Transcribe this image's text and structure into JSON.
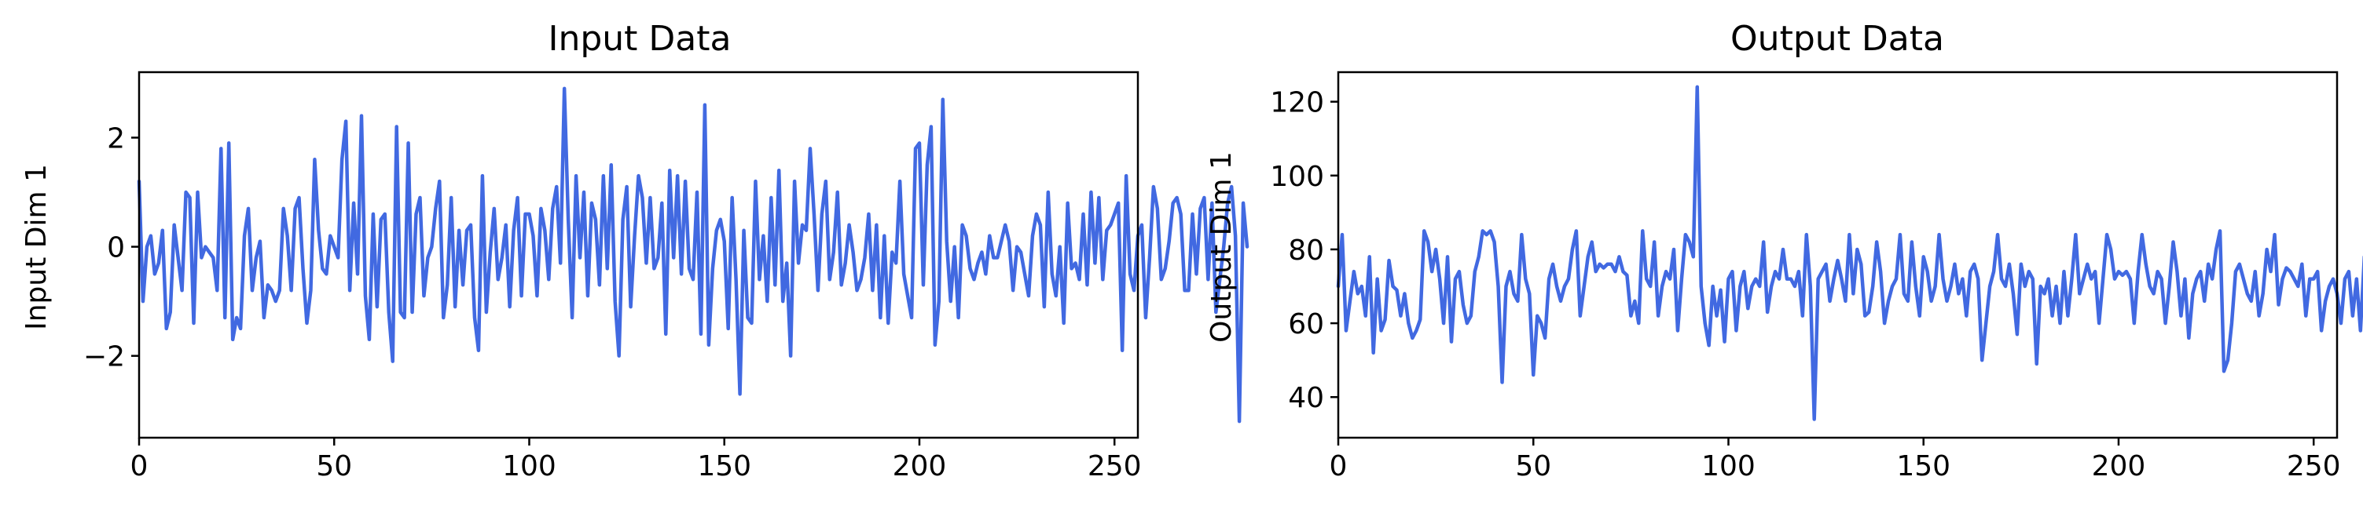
{
  "chart_data": [
    {
      "type": "line",
      "title": "Input Data",
      "xlabel": "",
      "ylabel": "Input Dim 1",
      "xlim": [
        0,
        256
      ],
      "ylim": [
        -3.5,
        3.2
      ],
      "xticks": [
        0,
        50,
        100,
        150,
        200,
        250
      ],
      "xtick_labels": [
        "0",
        "50",
        "100",
        "150",
        "200",
        "250"
      ],
      "yticks": [
        -2,
        0,
        2
      ],
      "ytick_labels": [
        "−2",
        "0",
        "2"
      ],
      "grid": false,
      "color": "#4169e1",
      "series": [
        {
          "values": [
            1.2,
            -1.0,
            0.0,
            0.2,
            -0.5,
            -0.3,
            0.3,
            -1.5,
            -1.2,
            0.4,
            -0.2,
            -0.8,
            1.0,
            0.9,
            -1.4,
            1.0,
            -0.2,
            0.0,
            -0.1,
            -0.2,
            -0.8,
            1.8,
            -1.3,
            1.9,
            -1.7,
            -1.3,
            -1.5,
            0.2,
            0.7,
            -0.8,
            -0.2,
            0.1,
            -1.3,
            -0.7,
            -0.8,
            -1.0,
            -0.8,
            0.7,
            0.2,
            -0.8,
            0.7,
            0.9,
            -0.4,
            -1.4,
            -0.8,
            1.6,
            0.3,
            -0.4,
            -0.5,
            0.2,
            0.0,
            -0.2,
            1.6,
            2.3,
            -0.8,
            0.8,
            -0.5,
            2.4,
            -0.9,
            -1.7,
            0.6,
            -1.1,
            0.5,
            0.6,
            -1.2,
            -2.1,
            2.2,
            -1.2,
            -1.3,
            1.9,
            -1.2,
            0.6,
            0.9,
            -0.9,
            -0.2,
            0.0,
            0.7,
            1.2,
            -1.3,
            -0.7,
            0.9,
            -1.1,
            0.3,
            -0.7,
            0.3,
            0.4,
            -1.3,
            -1.9,
            1.3,
            -1.2,
            -0.1,
            0.7,
            -0.6,
            -0.2,
            0.4,
            -1.1,
            0.3,
            0.9,
            -0.9,
            0.6,
            0.6,
            0.2,
            -0.9,
            0.7,
            0.3,
            -0.6,
            0.7,
            1.1,
            -0.3,
            2.9,
            0.5,
            -1.3,
            1.3,
            -0.2,
            1.0,
            -0.9,
            0.8,
            0.5,
            -0.7,
            1.3,
            -0.4,
            1.5,
            -1.0,
            -2.0,
            0.5,
            1.1,
            -1.1,
            0.2,
            1.3,
            0.9,
            -0.3,
            0.9,
            -0.4,
            -0.2,
            0.8,
            -1.6,
            1.4,
            -0.2,
            1.3,
            -0.5,
            1.2,
            -0.4,
            -0.6,
            1.0,
            -1.6,
            2.6,
            -1.8,
            -0.4,
            0.3,
            0.5,
            0.1,
            -1.5,
            0.9,
            -0.6,
            -2.7,
            0.3,
            -1.3,
            -1.4,
            1.2,
            -0.6,
            0.2,
            -1.0,
            0.9,
            -0.7,
            1.4,
            -1.0,
            -0.3,
            -2.0,
            1.2,
            -0.3,
            0.4,
            0.3,
            1.8,
            0.6,
            -0.8,
            0.6,
            1.2,
            -0.6,
            -0.1,
            1.0,
            -0.7,
            -0.3,
            0.4,
            -0.1,
            -0.8,
            -0.6,
            -0.2,
            0.6,
            -0.8,
            0.4,
            -1.3,
            0.2,
            -1.4,
            -0.1,
            -0.3,
            1.2,
            -0.5,
            -0.9,
            -1.3,
            1.8,
            1.9,
            -0.7,
            1.5,
            2.2,
            -1.8,
            -1.0,
            2.7,
            0.1,
            -1.0,
            0.0,
            -1.3,
            0.4,
            0.2,
            -0.4,
            -0.6,
            -0.3,
            -0.1,
            -0.5,
            0.2,
            -0.2,
            -0.2,
            0.1,
            0.4,
            0.1,
            -0.8,
            0.0,
            -0.1,
            -0.5,
            -0.9,
            0.2,
            0.6,
            0.4,
            -1.1,
            1.0,
            -0.5,
            -0.9,
            0.0,
            -1.4,
            0.8,
            -0.4,
            -0.3,
            -0.6,
            0.6,
            -0.7,
            1.0,
            -0.3,
            0.9,
            -0.6,
            0.3,
            0.4,
            0.6,
            0.8,
            -1.9,
            1.3,
            -0.5,
            -0.8,
            0.2,
            0.4,
            -1.3,
            -0.2,
            1.1,
            0.7,
            -0.6,
            -0.4,
            0.1,
            0.8,
            0.9,
            0.6,
            -0.8,
            -0.8,
            0.6,
            -0.5,
            0.7,
            0.9,
            -0.6,
            0.8,
            -1.2,
            -0.6,
            0.0,
            0.8,
            1.1,
            0.2,
            -3.2,
            0.8,
            0.0
          ]
        }
      ]
    },
    {
      "type": "line",
      "title": "Output Data",
      "xlabel": "",
      "ylabel": "Output Dim 1",
      "xlim": [
        0,
        256
      ],
      "ylim": [
        29,
        128
      ],
      "xticks": [
        0,
        50,
        100,
        150,
        200,
        250
      ],
      "xtick_labels": [
        "0",
        "50",
        "100",
        "150",
        "200",
        "250"
      ],
      "yticks": [
        40,
        60,
        80,
        100,
        120
      ],
      "ytick_labels": [
        "40",
        "60",
        "80",
        "100",
        "120"
      ],
      "grid": false,
      "color": "#4169e1",
      "series": [
        {
          "values": [
            70,
            84,
            58,
            66,
            74,
            68,
            70,
            62,
            78,
            52,
            72,
            58,
            61,
            77,
            70,
            69,
            62,
            68,
            60,
            56,
            58,
            61,
            85,
            82,
            74,
            80,
            72,
            60,
            78,
            55,
            72,
            74,
            65,
            60,
            62,
            74,
            78,
            85,
            84,
            85,
            82,
            70,
            44,
            70,
            74,
            68,
            66,
            84,
            72,
            68,
            46,
            62,
            60,
            56,
            72,
            76,
            70,
            66,
            70,
            72,
            80,
            85,
            62,
            70,
            78,
            82,
            74,
            76,
            75,
            76,
            76,
            74,
            78,
            74,
            73,
            62,
            66,
            60,
            85,
            72,
            70,
            82,
            62,
            70,
            74,
            72,
            80,
            58,
            72,
            84,
            82,
            78,
            124,
            70,
            60,
            54,
            70,
            62,
            69,
            55,
            72,
            74,
            58,
            70,
            74,
            64,
            70,
            72,
            70,
            82,
            63,
            70,
            74,
            72,
            80,
            72,
            72,
            70,
            74,
            62,
            84,
            70,
            34,
            72,
            74,
            76,
            66,
            72,
            77,
            72,
            66,
            84,
            68,
            80,
            76,
            62,
            63,
            70,
            82,
            74,
            60,
            66,
            70,
            72,
            84,
            68,
            66,
            82,
            70,
            62,
            78,
            74,
            66,
            70,
            84,
            72,
            66,
            70,
            76,
            68,
            72,
            62,
            74,
            76,
            72,
            50,
            60,
            70,
            74,
            84,
            72,
            70,
            76,
            68,
            57,
            76,
            70,
            74,
            72,
            49,
            70,
            68,
            72,
            62,
            70,
            60,
            74,
            62,
            72,
            84,
            68,
            72,
            76,
            72,
            74,
            60,
            72,
            84,
            80,
            72,
            74,
            73,
            74,
            72,
            60,
            74,
            84,
            76,
            70,
            68,
            74,
            72,
            60,
            70,
            82,
            74,
            62,
            72,
            56,
            68,
            72,
            74,
            66,
            76,
            72,
            80,
            85,
            47,
            50,
            60,
            74,
            76,
            72,
            68,
            66,
            74,
            62,
            68,
            80,
            74,
            84,
            65,
            72,
            75,
            74,
            72,
            70,
            76,
            62,
            72,
            72,
            74,
            58,
            66,
            70,
            72,
            68,
            60,
            72,
            74,
            62,
            72,
            58,
            78,
            60,
            50
          ]
        }
      ]
    }
  ]
}
